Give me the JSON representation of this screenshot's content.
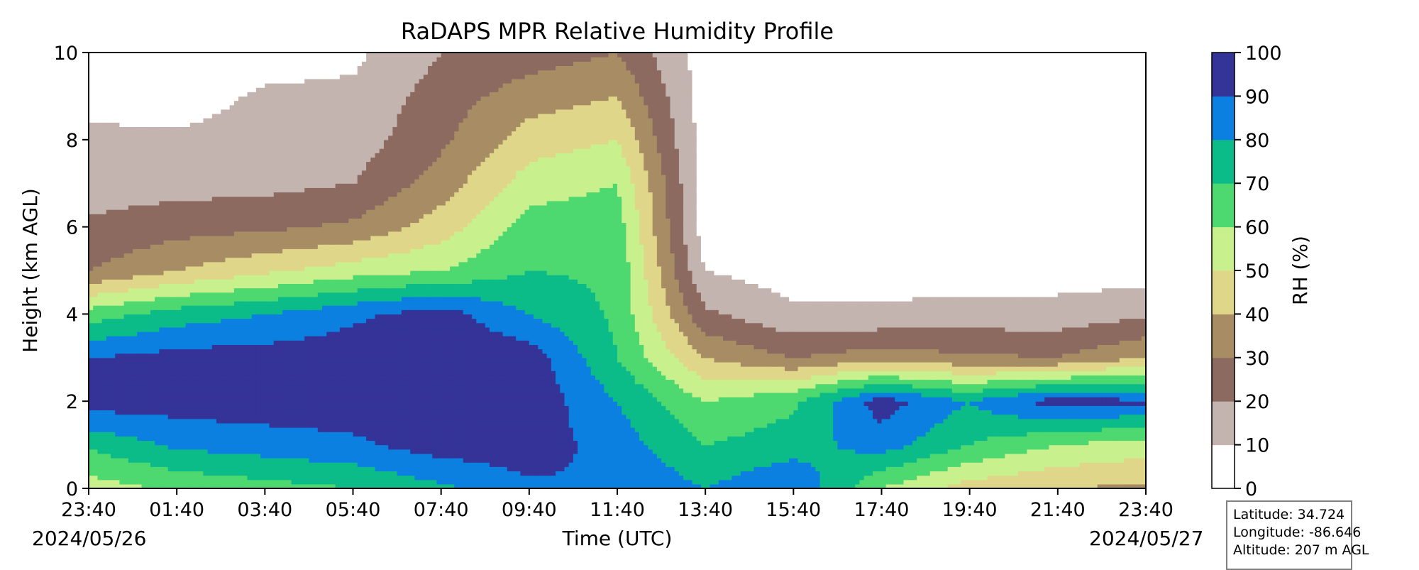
{
  "chart_data": {
    "type": "heatmap",
    "title": "RaDAPS MPR Relative Humidity Profile",
    "xlabel": "Time (UTC)",
    "ylabel": "Height (km AGL)",
    "ylim": [
      0,
      10
    ],
    "yticks": [
      "0",
      "2",
      "4",
      "6",
      "8",
      "10"
    ],
    "xticks": [
      "23:40",
      "01:40",
      "03:40",
      "05:40",
      "07:40",
      "09:40",
      "11:40",
      "13:40",
      "15:40",
      "17:40",
      "19:40",
      "21:40",
      "23:40"
    ],
    "date_start": "2024/05/26",
    "date_end": "2024/05/27",
    "colorbar": {
      "label": "RH (%)",
      "ticks": [
        "0",
        "10",
        "20",
        "30",
        "40",
        "50",
        "60",
        "70",
        "80",
        "90",
        "100"
      ],
      "levels": [
        0,
        10,
        20,
        30,
        40,
        50,
        60,
        70,
        80,
        90,
        100
      ],
      "colors": [
        "#ffffff",
        "#c4b4b0",
        "#8c6a60",
        "#a88c64",
        "#e0d68a",
        "#c8f08c",
        "#4ed870",
        "#0cbc88",
        "#0c80e0",
        "#343398"
      ]
    },
    "profiles_rh_percent_by_height_km": {
      "heights_km": [
        0,
        1,
        2,
        3,
        4,
        5,
        6,
        7,
        8,
        9,
        10
      ],
      "columns": [
        {
          "time": "23:40",
          "rh": [
            55,
            72,
            95,
            90,
            65,
            30,
            22,
            15,
            13,
            5,
            0
          ]
        },
        {
          "time": "01:40",
          "rh": [
            62,
            82,
            95,
            94,
            75,
            40,
            26,
            16,
            12,
            5,
            0
          ]
        },
        {
          "time": "03:40",
          "rh": [
            66,
            85,
            96,
            95,
            80,
            48,
            28,
            17,
            14,
            12,
            5
          ]
        },
        {
          "time": "05:40",
          "rh": [
            70,
            88,
            96,
            96,
            88,
            55,
            32,
            20,
            15,
            12,
            8
          ]
        },
        {
          "time": "07:40",
          "rh": [
            78,
            95,
            97,
            97,
            95,
            60,
            45,
            35,
            28,
            25,
            20
          ]
        },
        {
          "time": "09:40",
          "rh": [
            88,
            96,
            97,
            96,
            80,
            70,
            65,
            55,
            45,
            35,
            25
          ]
        },
        {
          "time": "11:40",
          "rh": [
            90,
            85,
            80,
            70,
            68,
            68,
            65,
            60,
            50,
            40,
            30
          ]
        },
        {
          "time": "13:40",
          "rh": [
            80,
            70,
            60,
            40,
            22,
            10,
            5,
            5,
            5,
            5,
            5
          ]
        },
        {
          "time": "15:40",
          "rh": [
            90,
            75,
            68,
            30,
            12,
            5,
            5,
            5,
            5,
            5,
            5
          ]
        },
        {
          "time": "17:40",
          "rh": [
            60,
            85,
            95,
            35,
            12,
            5,
            5,
            5,
            5,
            5,
            5
          ]
        },
        {
          "time": "19:40",
          "rh": [
            45,
            70,
            80,
            32,
            14,
            5,
            5,
            5,
            5,
            5,
            5
          ]
        },
        {
          "time": "21:40",
          "rh": [
            40,
            60,
            95,
            30,
            14,
            5,
            5,
            5,
            5,
            5,
            5
          ]
        },
        {
          "time": "23:40",
          "rh": [
            38,
            55,
            92,
            40,
            18,
            5,
            5,
            5,
            5,
            5,
            5
          ]
        }
      ]
    }
  },
  "station": {
    "latitude": "Latitude: 34.724",
    "longitude": "Longitude: -86.646",
    "altitude": "Altitude: 207 m AGL"
  }
}
